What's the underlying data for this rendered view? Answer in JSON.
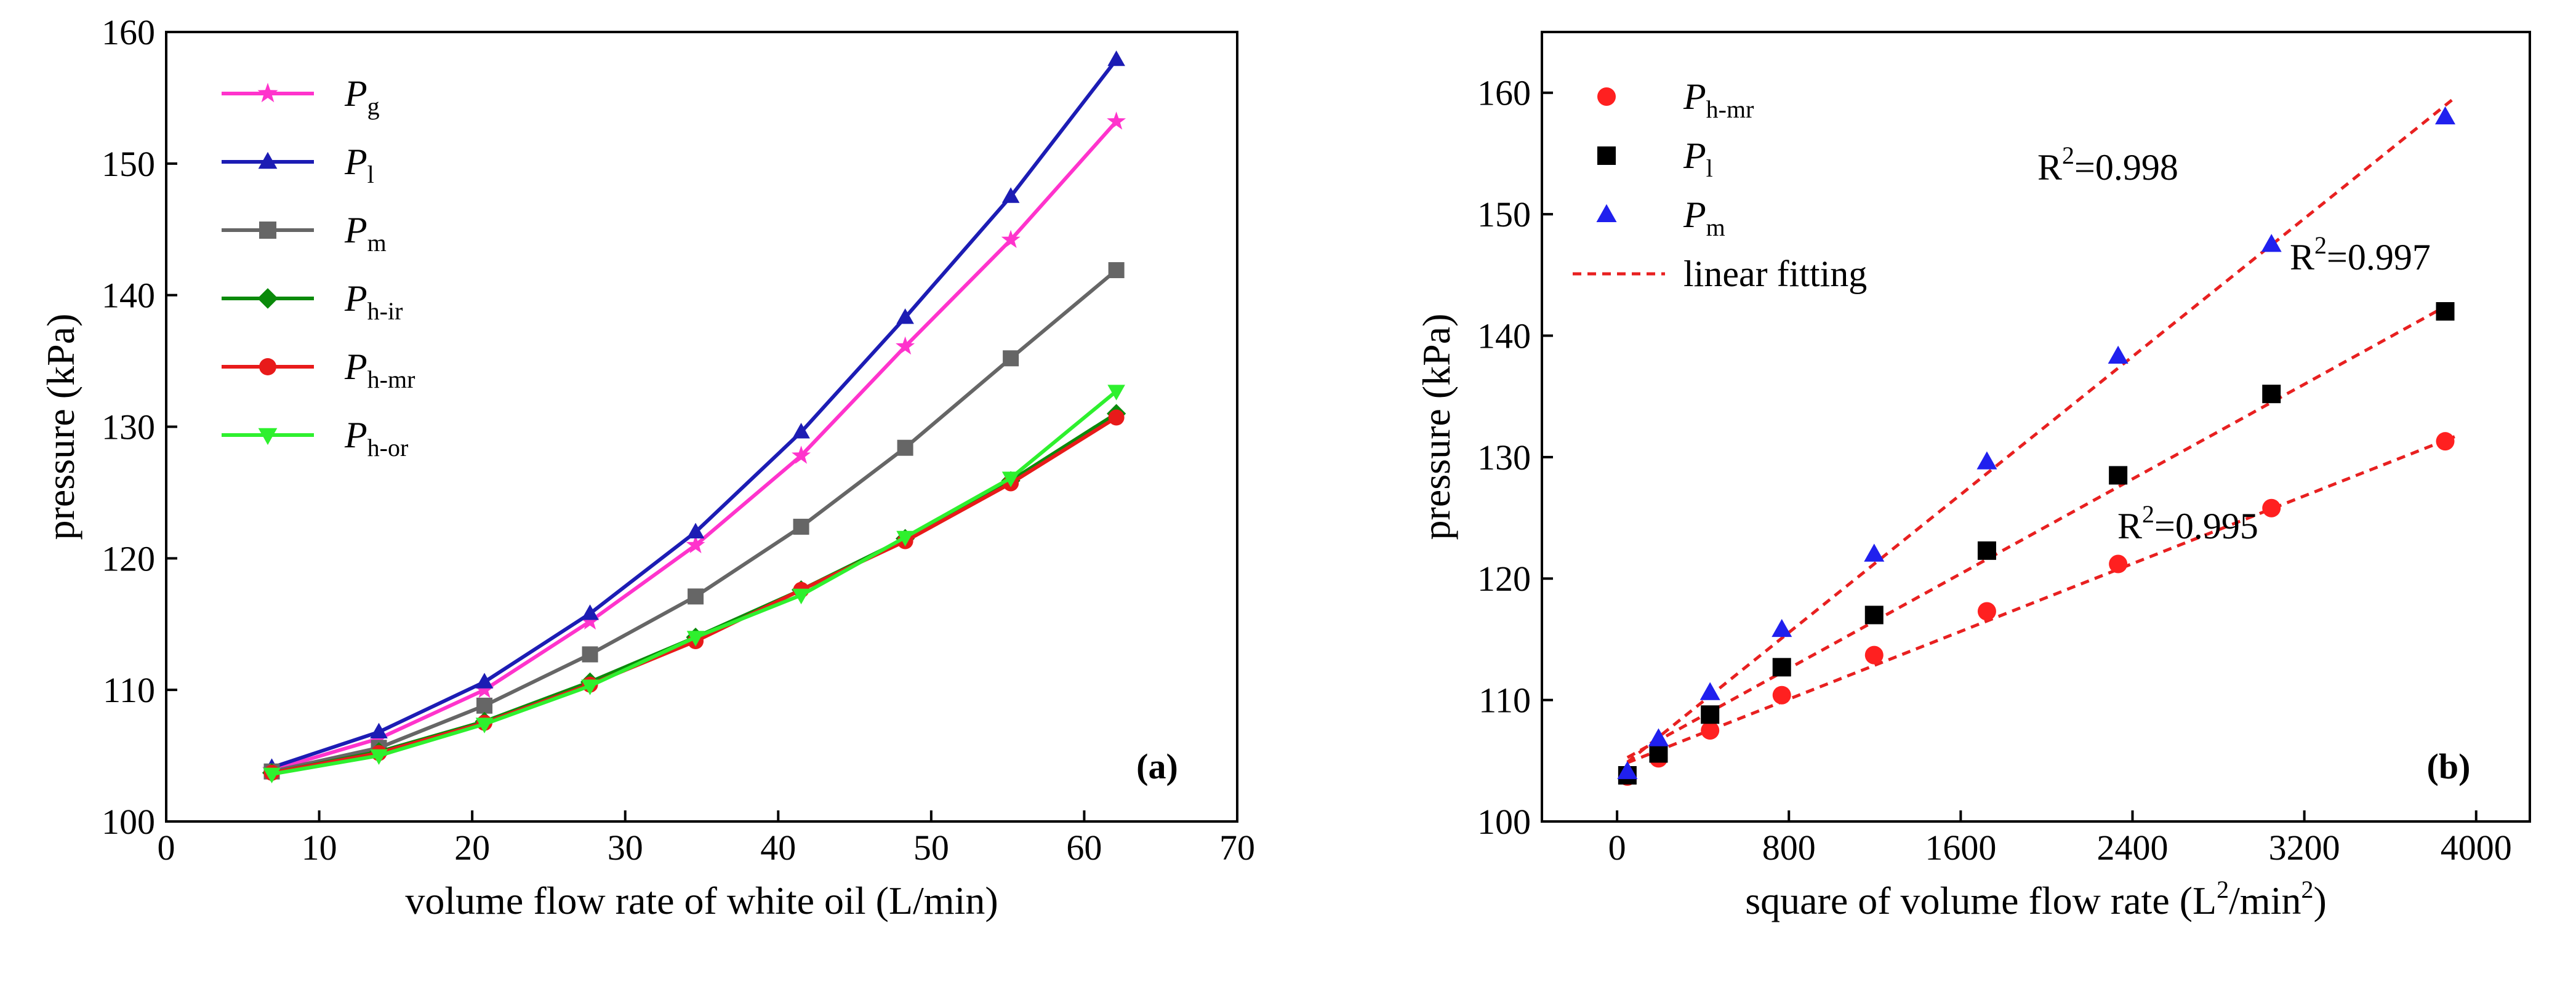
{
  "chart_data": [
    {
      "panel": "(a)",
      "type": "line",
      "xlabel": "volume flow rate of white oil (L/min)",
      "ylabel": "pressure (kPa)",
      "xlim": [
        0,
        70
      ],
      "ylim": [
        100,
        160
      ],
      "xticks": [
        0,
        10,
        20,
        30,
        40,
        50,
        60,
        70
      ],
      "yticks": [
        100,
        110,
        120,
        130,
        140,
        150,
        160
      ],
      "grid": false,
      "legend_position": "top-left",
      "x": [
        6.9,
        13.9,
        20.8,
        27.7,
        34.6,
        41.5,
        48.3,
        55.2,
        62.1
      ],
      "series": [
        {
          "name": "P",
          "sub": "g",
          "color": "#ff33cc",
          "marker": "star",
          "values": [
            103.9,
            106.3,
            110.0,
            115.2,
            121.0,
            127.8,
            136.1,
            144.2,
            153.2
          ]
        },
        {
          "name": "P",
          "sub": "l",
          "color": "#1c1cb4",
          "marker": "triangle-up",
          "values": [
            104.1,
            106.8,
            110.6,
            115.8,
            122.0,
            129.6,
            138.3,
            147.5,
            157.9
          ]
        },
        {
          "name": "P",
          "sub": "m",
          "color": "#666666",
          "marker": "square",
          "values": [
            103.8,
            105.6,
            108.8,
            112.7,
            117.1,
            122.4,
            128.4,
            135.2,
            141.9
          ]
        },
        {
          "name": "P",
          "sub": "h-ir",
          "color": "#0a8a0a",
          "marker": "diamond",
          "values": [
            103.7,
            105.3,
            107.6,
            110.6,
            114.0,
            117.6,
            121.5,
            125.9,
            131.0
          ]
        },
        {
          "name": "P",
          "sub": "h-mr",
          "color": "#e81a1a",
          "marker": "circle",
          "values": [
            103.7,
            105.2,
            107.5,
            110.4,
            113.7,
            117.6,
            121.3,
            125.7,
            130.7
          ]
        },
        {
          "name": "P",
          "sub": "h-or",
          "color": "#2ef02e",
          "marker": "triangle-down",
          "values": [
            103.6,
            105.0,
            107.4,
            110.3,
            114.0,
            117.2,
            121.6,
            126.1,
            132.7
          ]
        }
      ]
    },
    {
      "panel": "(b)",
      "type": "scatter",
      "xlabel": "square of volume flow rate (L",
      "xlabel_sup1": "2",
      "xlabel_mid": "/min",
      "xlabel_sup2": "2",
      "xlabel_end": ")",
      "ylabel": "pressure (kPa)",
      "xlim": [
        -350,
        4250
      ],
      "ylim": [
        100,
        165
      ],
      "xticks": [
        0,
        800,
        1600,
        2400,
        3200,
        4000
      ],
      "yticks": [
        100,
        110,
        120,
        130,
        140,
        150,
        160
      ],
      "grid": false,
      "legend_position": "top-left",
      "x": [
        48,
        193,
        433,
        767,
        1197,
        1722,
        2333,
        3047,
        3856
      ],
      "series": [
        {
          "name": "P",
          "sub": "h-mr",
          "color": "#ff2020",
          "marker": "circle",
          "values": [
            103.7,
            105.2,
            107.5,
            110.4,
            113.7,
            117.3,
            121.2,
            125.8,
            131.3
          ],
          "fit": {
            "slope": 0.00697,
            "intercept": 104.5,
            "r2_label": "R",
            "r2_sup": "2",
            "r2_value": "=0.995"
          }
        },
        {
          "name": "P",
          "sub": "l",
          "color": "#000000",
          "marker": "square",
          "values": [
            103.8,
            105.6,
            108.8,
            112.7,
            117.0,
            122.3,
            128.5,
            135.2,
            142.0
          ],
          "fit": {
            "slope": 0.00975,
            "intercept": 104.8,
            "r2_label": "R",
            "r2_sup": "2",
            "r2_value": "=0.997"
          }
        },
        {
          "name": "P",
          "sub": "m",
          "color": "#2020ee",
          "marker": "triangle-up",
          "values": [
            104.1,
            106.8,
            110.6,
            115.8,
            122.0,
            129.6,
            138.3,
            147.5,
            158.0
          ],
          "fit": {
            "slope": 0.0142,
            "intercept": 104.2,
            "r2_label": "R",
            "r2_sup": "2",
            "r2_value": "=0.998"
          }
        }
      ],
      "fit_legend_label": "linear fitting",
      "fit_color": "#e82020"
    }
  ]
}
